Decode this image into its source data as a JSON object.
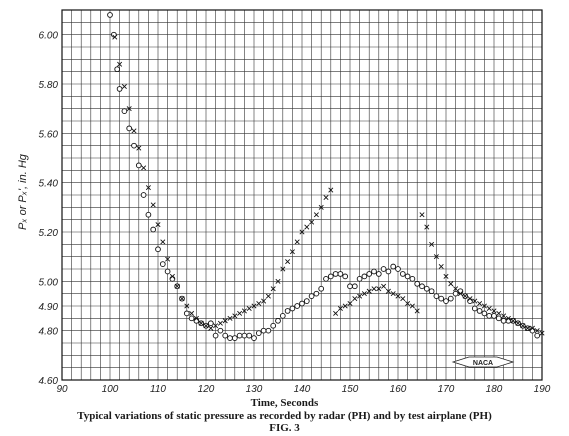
{
  "chart_data": {
    "type": "scatter",
    "xlabel": "Time, Seconds",
    "ylabel": "Pₓ or Pₓ', in. Hg",
    "title": "Typical variations of static pressure as recorded by radar (PH) and by test airplane (PH)",
    "figure_label": "FIG. 3",
    "badge_text": "NACA",
    "xlim": [
      90,
      190
    ],
    "ylim": [
      4.6,
      6.1
    ],
    "x_ticks": [
      90,
      100,
      110,
      120,
      130,
      140,
      150,
      160,
      170,
      180,
      190
    ],
    "y_ticks": [
      4.6,
      4.8,
      4.9,
      5.0,
      5.2,
      5.4,
      5.6,
      5.8,
      6.0
    ],
    "x_tick_labels": [
      "90",
      "100",
      "110",
      "120",
      "130",
      "140",
      "150",
      "160",
      "170",
      "180",
      "190"
    ],
    "y_tick_labels": [
      "4.60",
      "4.80",
      "4.90",
      "5.00",
      "5.20",
      "5.40",
      "5.60",
      "5.80",
      "6.00"
    ],
    "grid": true,
    "series": [
      {
        "marker": "circle",
        "x": [
          100,
          100.8,
          101.5,
          102,
          103,
          104,
          105,
          106,
          107,
          108,
          109,
          110,
          111,
          112,
          113,
          114,
          115,
          116,
          117,
          118,
          119,
          120,
          121,
          122,
          123,
          124,
          125,
          126,
          127,
          128,
          129,
          130,
          131,
          132,
          133,
          134,
          135,
          136,
          137,
          138,
          139,
          140,
          141,
          142,
          143,
          144,
          145,
          146,
          147,
          148,
          149,
          150,
          151,
          152,
          153,
          154,
          155,
          156,
          157,
          158,
          159,
          160,
          161,
          162,
          163,
          164,
          165,
          166,
          167,
          168,
          169,
          170,
          171,
          172,
          173,
          174,
          175,
          176,
          177,
          178,
          179,
          180,
          181,
          182,
          183,
          184,
          185,
          186,
          187,
          188,
          189
        ],
        "y": [
          6.08,
          6.0,
          5.86,
          5.78,
          5.69,
          5.62,
          5.55,
          5.47,
          5.35,
          5.27,
          5.21,
          5.13,
          5.07,
          5.04,
          5.01,
          4.98,
          4.93,
          4.87,
          4.85,
          4.84,
          4.83,
          4.82,
          4.83,
          4.78,
          4.8,
          4.78,
          4.77,
          4.77,
          4.78,
          4.78,
          4.78,
          4.77,
          4.79,
          4.8,
          4.8,
          4.82,
          4.84,
          4.86,
          4.88,
          4.89,
          4.9,
          4.91,
          4.92,
          4.94,
          4.95,
          4.97,
          5.01,
          5.02,
          5.03,
          5.03,
          5.02,
          4.98,
          4.98,
          5.01,
          5.02,
          5.03,
          5.04,
          5.03,
          5.05,
          5.04,
          5.06,
          5.05,
          5.03,
          5.02,
          5.01,
          4.99,
          4.98,
          4.97,
          4.96,
          4.94,
          4.93,
          4.92,
          4.93,
          4.95,
          4.96,
          4.94,
          4.92,
          4.89,
          4.88,
          4.87,
          4.86,
          4.86,
          4.85,
          4.84,
          4.84,
          4.84,
          4.83,
          4.82,
          4.81,
          4.8,
          4.78
        ]
      },
      {
        "marker": "x",
        "x": [
          101,
          102,
          103,
          104,
          105,
          106,
          107,
          108,
          109,
          110,
          111,
          112,
          113,
          114,
          115,
          116,
          117,
          118,
          119,
          120,
          121,
          122,
          123,
          124,
          125,
          126,
          127,
          128,
          129,
          130,
          131,
          132,
          133,
          134,
          135,
          136,
          137,
          138,
          139,
          140,
          141,
          142,
          143,
          144,
          145,
          146,
          147,
          148,
          149,
          150,
          151,
          152,
          153,
          154,
          155,
          156,
          157,
          158,
          159,
          160,
          161,
          162,
          163,
          164,
          165,
          166,
          167,
          168,
          169,
          170,
          171,
          172,
          173,
          174,
          175,
          176,
          177,
          178,
          179,
          180,
          181,
          182,
          183,
          184,
          185,
          186,
          187,
          188,
          189,
          190
        ],
        "y": [
          5.99,
          5.88,
          5.79,
          5.7,
          5.61,
          5.54,
          5.46,
          5.38,
          5.31,
          5.23,
          5.16,
          5.09,
          5.02,
          4.98,
          4.93,
          4.9,
          4.87,
          4.85,
          4.83,
          4.82,
          4.81,
          4.82,
          4.83,
          4.84,
          4.85,
          4.86,
          4.87,
          4.88,
          4.89,
          4.9,
          4.91,
          4.92,
          4.94,
          4.97,
          5.0,
          5.05,
          5.08,
          5.12,
          5.16,
          5.2,
          5.22,
          5.24,
          5.27,
          5.3,
          5.34,
          5.37,
          4.87,
          4.89,
          4.9,
          4.91,
          4.93,
          4.94,
          4.95,
          4.96,
          4.97,
          4.97,
          4.98,
          4.96,
          4.95,
          4.94,
          4.93,
          4.91,
          4.9,
          4.88,
          5.27,
          5.22,
          5.15,
          5.1,
          5.06,
          5.02,
          4.99,
          4.97,
          4.95,
          4.94,
          4.93,
          4.92,
          4.91,
          4.9,
          4.89,
          4.88,
          4.87,
          4.86,
          4.85,
          4.84,
          4.83,
          4.82,
          4.81,
          4.81,
          4.8,
          4.79
        ]
      }
    ]
  }
}
